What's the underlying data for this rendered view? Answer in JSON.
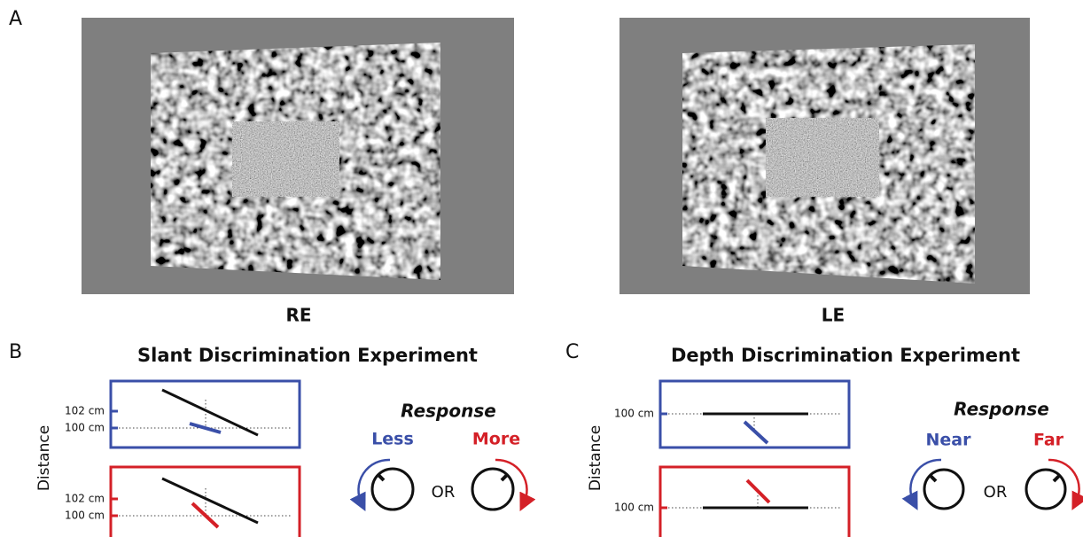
{
  "panel_a": {
    "label": "A",
    "left_caption": "RE",
    "right_caption": "LE"
  },
  "panel_b": {
    "label": "B",
    "title": "Slant Discrimination Experiment",
    "axis_label": "Distance",
    "top_ticks": [
      "102 cm",
      "100 cm"
    ],
    "bottom_ticks": [
      "102 cm",
      "100 cm"
    ],
    "response": {
      "title": "Response",
      "left": "Less",
      "or": "OR",
      "right": "More"
    }
  },
  "panel_c": {
    "label": "C",
    "title": "Depth Discrimination Experiment",
    "axis_label": "Distance",
    "top_ticks": [
      "100 cm"
    ],
    "bottom_ticks": [
      "100 cm"
    ],
    "response": {
      "title": "Response",
      "left": "Near",
      "or": "OR",
      "right": "Far"
    }
  }
}
